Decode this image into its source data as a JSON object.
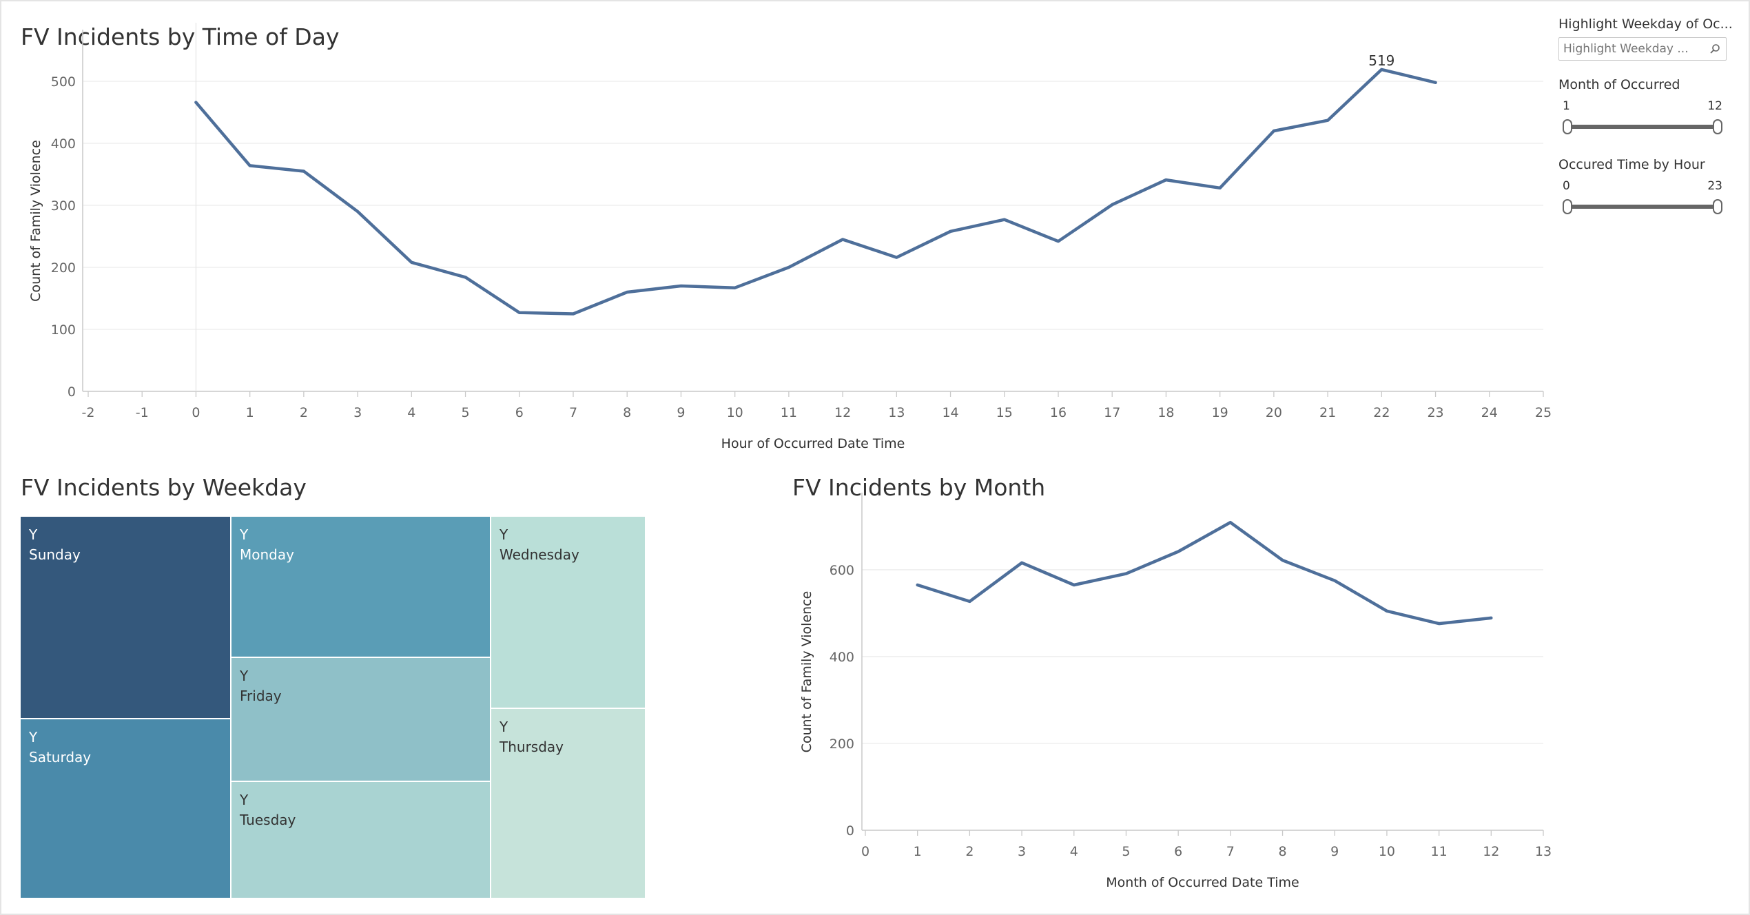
{
  "colors": {
    "line": "#4e6f9a",
    "grid": "#ececec",
    "axis": "#c9c9c9",
    "treemap": {
      "Sunday": "#34587c",
      "Saturday": "#4a8aaa",
      "Monday": "#5a9db6",
      "Friday": "#8fc0c8",
      "Tuesday": "#a9d3d2",
      "Wednesday": "#badfd8",
      "Thursday": "#c6e3da"
    }
  },
  "time_chart": {
    "title": "FV Incidents by Time of Day",
    "label_519": "519",
    "chart_data": {
      "type": "line",
      "title": "FV Incidents by Time of Day",
      "xlabel": "Hour of Occurred Date Time",
      "ylabel": "Count of Family Violence",
      "xlim": [
        -2,
        25
      ],
      "ylim": [
        0,
        550
      ],
      "xticks": [
        -2,
        -1,
        0,
        1,
        2,
        3,
        4,
        5,
        6,
        7,
        8,
        9,
        10,
        11,
        12,
        13,
        14,
        15,
        16,
        17,
        18,
        19,
        20,
        21,
        22,
        23,
        24,
        25
      ],
      "yticks": [
        0,
        100,
        200,
        300,
        400,
        500
      ],
      "x": [
        0,
        1,
        2,
        3,
        4,
        5,
        6,
        7,
        8,
        9,
        10,
        11,
        12,
        13,
        14,
        15,
        16,
        17,
        18,
        19,
        20,
        21,
        22,
        23
      ],
      "values": [
        466,
        364,
        355,
        290,
        208,
        184,
        127,
        125,
        160,
        170,
        167,
        200,
        245,
        216,
        258,
        277,
        242,
        301,
        341,
        328,
        420,
        437,
        519,
        498
      ],
      "annotations": [
        {
          "x": 22,
          "text": "519"
        }
      ],
      "grid": true
    }
  },
  "weekday_chart": {
    "title": "FV Incidents by Weekday",
    "chart_data": {
      "type": "treemap",
      "title": "FV Incidents by Weekday",
      "items": [
        {
          "prefix": "Y",
          "name": "Sunday"
        },
        {
          "prefix": "Y",
          "name": "Saturday"
        },
        {
          "prefix": "Y",
          "name": "Monday"
        },
        {
          "prefix": "Y",
          "name": "Friday"
        },
        {
          "prefix": "Y",
          "name": "Tuesday"
        },
        {
          "prefix": "Y",
          "name": "Wednesday"
        },
        {
          "prefix": "Y",
          "name": "Thursday"
        }
      ]
    }
  },
  "month_chart": {
    "title": "FV Incidents by Month",
    "chart_data": {
      "type": "line",
      "title": "FV Incidents by Month",
      "xlabel": "Month of Occurred Date Time",
      "ylabel": "Count of Family Violence",
      "xlim": [
        0,
        13
      ],
      "ylim": [
        0,
        730
      ],
      "xticks": [
        0,
        1,
        2,
        3,
        4,
        5,
        6,
        7,
        8,
        9,
        10,
        11,
        12,
        13
      ],
      "yticks": [
        0,
        200,
        400,
        600
      ],
      "x": [
        1,
        2,
        3,
        4,
        5,
        6,
        7,
        8,
        9,
        10,
        11,
        12
      ],
      "values": [
        565,
        527,
        616,
        565,
        591,
        642,
        709,
        622,
        575,
        505,
        476,
        489
      ],
      "grid": true
    }
  },
  "filters": {
    "highlight": {
      "title": "Highlight Weekday of Oc...",
      "placeholder": "Highlight Weekday ..."
    },
    "month": {
      "title": "Month of Occurred",
      "min_label": "1",
      "max_label": "12",
      "selected": [
        1,
        12
      ]
    },
    "hour": {
      "title": "Occured Time by Hour",
      "min_label": "0",
      "max_label": "23",
      "selected": [
        0,
        23
      ]
    }
  }
}
